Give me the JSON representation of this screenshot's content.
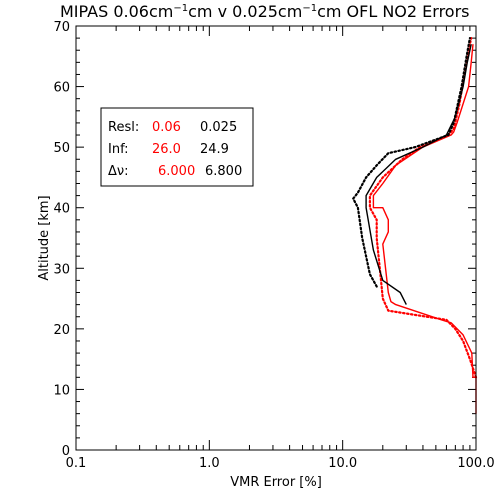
{
  "chart_data": {
    "type": "line",
    "title_parts": {
      "prefix": "MIPAS 0.06cm",
      "sup1": "−1",
      "mid": "cm v 0.025cm",
      "sup2": "−1",
      "suffix": "cm OFL NO2 Errors"
    },
    "xlabel": "VMR Error [%]",
    "ylabel": "Altitude [km]",
    "xscale": "log",
    "xlim": [
      0.1,
      100
    ],
    "ylim": [
      0,
      70
    ],
    "x_ticks": [
      0.1,
      1.0,
      10.0,
      100.0
    ],
    "x_tick_labels": [
      "0.1",
      "1.0",
      "10.0",
      "100.0"
    ],
    "y_ticks": [
      0,
      10,
      20,
      30,
      40,
      50,
      60,
      70
    ],
    "y_tick_labels": [
      "0",
      "10",
      "20",
      "30",
      "40",
      "50",
      "60",
      "70"
    ],
    "legend": {
      "placement": "upper-left",
      "rows": [
        {
          "label": "Resl:",
          "red": "0.06",
          "black": "0.025"
        },
        {
          "label": "Inf:",
          "red": "26.0",
          "black": "24.9"
        },
        {
          "label": "Δν:",
          "red": "6.000",
          "black": "6.800"
        }
      ]
    },
    "colors": {
      "red": "#ff0000",
      "black": "#000000"
    },
    "series": [
      {
        "color": "red",
        "style": "solid",
        "points": [
          [
            100,
            6
          ],
          [
            100,
            12
          ],
          [
            95,
            12
          ],
          [
            93,
            16
          ],
          [
            80,
            19
          ],
          [
            65,
            21
          ],
          [
            55,
            21.5
          ],
          [
            25,
            24
          ],
          [
            23,
            24.5
          ],
          [
            22,
            26
          ],
          [
            20,
            34
          ],
          [
            22,
            36
          ],
          [
            22,
            38
          ],
          [
            20,
            40
          ],
          [
            17,
            40
          ],
          [
            17,
            42
          ],
          [
            20,
            44
          ],
          [
            25,
            47
          ],
          [
            40,
            50
          ],
          [
            65,
            52
          ],
          [
            68,
            52.5
          ],
          [
            72,
            54
          ],
          [
            88,
            60
          ],
          [
            92,
            64
          ],
          [
            95,
            67
          ]
        ]
      },
      {
        "color": "red",
        "style": "dotted",
        "points": [
          [
            100,
            12
          ],
          [
            90,
            15
          ],
          [
            80,
            18
          ],
          [
            70,
            20
          ],
          [
            60,
            21.5
          ],
          [
            22,
            23
          ],
          [
            20,
            25
          ],
          [
            19,
            30
          ],
          [
            18,
            35
          ],
          [
            18,
            38
          ],
          [
            16,
            40
          ],
          [
            16,
            42
          ],
          [
            20,
            45
          ],
          [
            28,
            48
          ],
          [
            38,
            50
          ],
          [
            62,
            52
          ],
          [
            68,
            53
          ],
          [
            75,
            57
          ],
          [
            82,
            62
          ],
          [
            88,
            66
          ],
          [
            92,
            68
          ]
        ]
      },
      {
        "color": "black",
        "style": "solid",
        "points": [
          [
            30,
            24
          ],
          [
            27,
            26
          ],
          [
            20,
            28
          ],
          [
            17,
            33
          ],
          [
            15,
            40
          ],
          [
            15,
            42
          ],
          [
            18,
            45
          ],
          [
            25,
            48
          ],
          [
            40,
            50
          ],
          [
            60,
            52
          ],
          [
            70,
            55
          ],
          [
            80,
            60
          ],
          [
            86,
            64
          ],
          [
            92,
            67
          ]
        ]
      },
      {
        "color": "black",
        "style": "dotted",
        "points": [
          [
            18,
            27
          ],
          [
            16,
            29
          ],
          [
            14,
            35
          ],
          [
            13,
            40
          ],
          [
            12,
            41.5
          ],
          [
            13,
            42.5
          ],
          [
            15,
            45
          ],
          [
            18,
            47
          ],
          [
            22,
            49
          ],
          [
            35,
            50
          ],
          [
            62,
            52
          ],
          [
            68,
            54
          ],
          [
            78,
            60
          ],
          [
            85,
            65
          ],
          [
            90,
            68
          ]
        ]
      }
    ]
  }
}
